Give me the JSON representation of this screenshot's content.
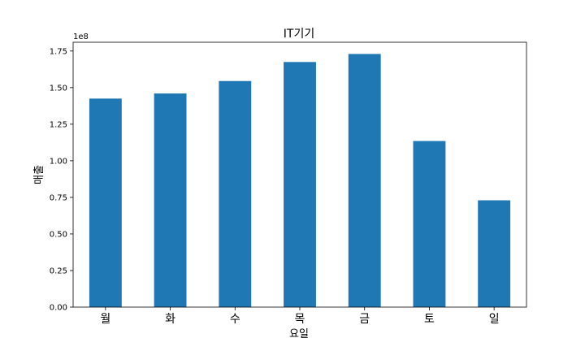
{
  "chart_data": {
    "type": "bar",
    "title": "IT기기",
    "xlabel": "요일",
    "ylabel": "매출",
    "offset_label": "1e8",
    "categories": [
      "월",
      "화",
      "수",
      "목",
      "금",
      "토",
      "일"
    ],
    "values": [
      142500000,
      146000000,
      154500000,
      167500000,
      173000000,
      113500000,
      73000000
    ],
    "ylim": [
      0,
      181000000
    ],
    "yticks": [
      0,
      25000000,
      50000000,
      75000000,
      100000000,
      125000000,
      150000000,
      175000000
    ],
    "ytick_labels": [
      "0.00",
      "0.25",
      "0.50",
      "0.75",
      "1.00",
      "1.25",
      "1.50",
      "1.75"
    ],
    "bar_color": "#1f77b4",
    "grid": false,
    "legend": "none"
  }
}
